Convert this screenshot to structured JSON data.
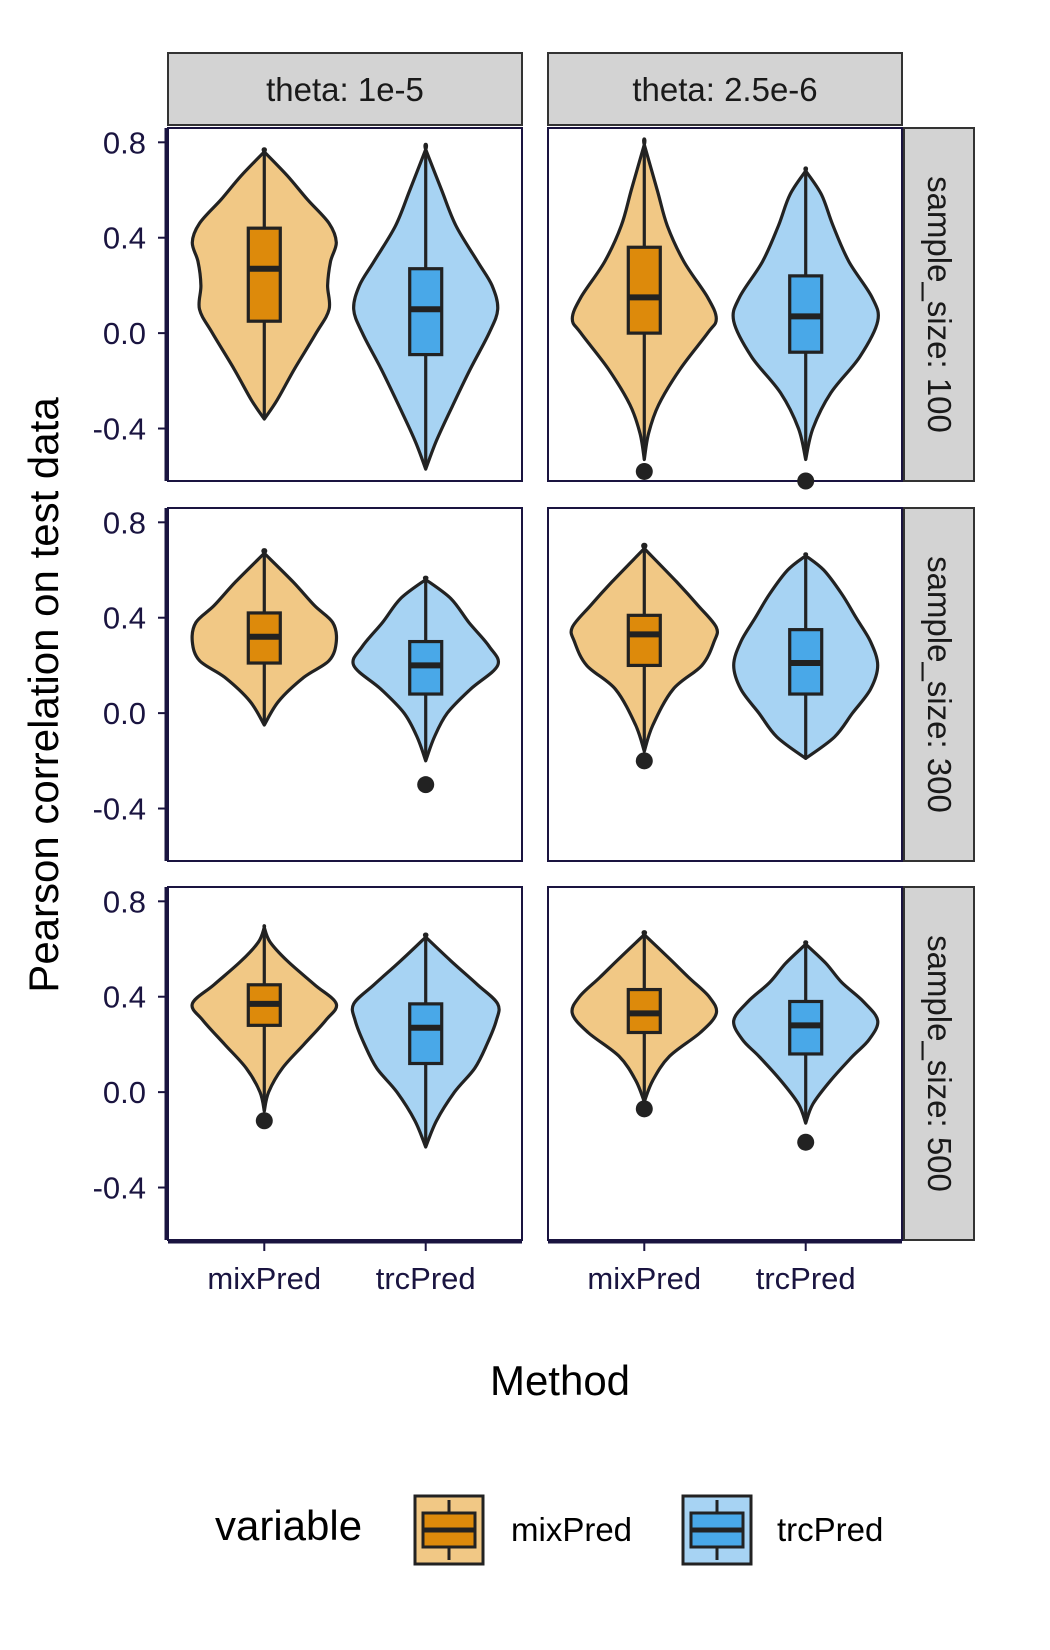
{
  "chart_data": {
    "type": "violin",
    "xlabel": "Method",
    "ylabel": "Pearson correlation on test data",
    "ylim": [
      -0.62,
      0.86
    ],
    "yticks": [
      -0.4,
      0.0,
      0.4,
      0.8
    ],
    "ytick_labels": [
      "-0.4",
      "0.0",
      "0.4",
      "0.8"
    ],
    "categories": [
      "mixPred",
      "trcPred"
    ],
    "facet_cols": [
      "theta: 1e-5",
      "theta: 2.5e-6"
    ],
    "facet_rows": [
      "sample_size: 100",
      "sample_size: 300",
      "sample_size: 500"
    ],
    "legend": {
      "title": "variable",
      "position": "bottom",
      "items": [
        "mixPred",
        "trcPred"
      ]
    },
    "colors": {
      "mixPred_fill": "#dd8a0b",
      "mixPred_violin": "#f1c885",
      "trcPred_fill": "#49a8e8",
      "trcPred_violin": "#a7d3f3",
      "outline": "#222222",
      "strip_bg": "#d3d3d3",
      "panel_border": "#1a1440"
    },
    "panels": [
      {
        "row": 0,
        "col": 0,
        "violins": [
          {
            "method": "mixPred",
            "min": -0.36,
            "max": 0.76,
            "q1": 0.05,
            "median": 0.27,
            "q3": 0.44,
            "outliers": [],
            "shape": [
              [
                -0.36,
                0.0
              ],
              [
                -0.28,
                0.18
              ],
              [
                -0.15,
                0.42
              ],
              [
                0.0,
                0.72
              ],
              [
                0.1,
                0.9
              ],
              [
                0.2,
                0.88
              ],
              [
                0.3,
                0.92
              ],
              [
                0.38,
                1.0
              ],
              [
                0.46,
                0.9
              ],
              [
                0.56,
                0.6
              ],
              [
                0.66,
                0.32
              ],
              [
                0.76,
                0.0
              ]
            ]
          },
          {
            "method": "trcPred",
            "min": -0.57,
            "max": 0.77,
            "q1": -0.09,
            "median": 0.1,
            "q3": 0.27,
            "outliers": [],
            "shape": [
              [
                -0.57,
                0.0
              ],
              [
                -0.45,
                0.15
              ],
              [
                -0.3,
                0.38
              ],
              [
                -0.15,
                0.62
              ],
              [
                0.0,
                0.88
              ],
              [
                0.1,
                1.0
              ],
              [
                0.2,
                0.92
              ],
              [
                0.3,
                0.72
              ],
              [
                0.45,
                0.42
              ],
              [
                0.6,
                0.22
              ],
              [
                0.77,
                0.0
              ]
            ]
          }
        ]
      },
      {
        "row": 0,
        "col": 1,
        "violins": [
          {
            "method": "mixPred",
            "min": -0.53,
            "max": 0.79,
            "q1": 0.0,
            "median": 0.15,
            "q3": 0.36,
            "outliers": [
              -0.58
            ],
            "shape": [
              [
                -0.53,
                0.0
              ],
              [
                -0.42,
                0.06
              ],
              [
                -0.3,
                0.2
              ],
              [
                -0.15,
                0.5
              ],
              [
                0.0,
                0.88
              ],
              [
                0.06,
                1.0
              ],
              [
                0.15,
                0.88
              ],
              [
                0.3,
                0.55
              ],
              [
                0.45,
                0.32
              ],
              [
                0.6,
                0.18
              ],
              [
                0.79,
                0.0
              ]
            ]
          },
          {
            "method": "trcPred",
            "min": -0.53,
            "max": 0.68,
            "q1": -0.08,
            "median": 0.07,
            "q3": 0.24,
            "outliers": [
              -0.62
            ],
            "shape": [
              [
                -0.53,
                0.0
              ],
              [
                -0.4,
                0.1
              ],
              [
                -0.25,
                0.35
              ],
              [
                -0.1,
                0.75
              ],
              [
                0.05,
                1.0
              ],
              [
                0.15,
                0.92
              ],
              [
                0.3,
                0.6
              ],
              [
                0.45,
                0.38
              ],
              [
                0.58,
                0.22
              ],
              [
                0.68,
                0.0
              ]
            ]
          }
        ]
      },
      {
        "row": 1,
        "col": 0,
        "violins": [
          {
            "method": "mixPred",
            "min": -0.05,
            "max": 0.67,
            "q1": 0.21,
            "median": 0.32,
            "q3": 0.42,
            "outliers": [],
            "shape": [
              [
                -0.05,
                0.0
              ],
              [
                0.05,
                0.2
              ],
              [
                0.15,
                0.55
              ],
              [
                0.22,
                0.9
              ],
              [
                0.3,
                1.0
              ],
              [
                0.38,
                0.95
              ],
              [
                0.45,
                0.7
              ],
              [
                0.55,
                0.4
              ],
              [
                0.67,
                0.0
              ]
            ]
          },
          {
            "method": "trcPred",
            "min": -0.2,
            "max": 0.56,
            "q1": 0.08,
            "median": 0.2,
            "q3": 0.3,
            "outliers": [
              -0.3
            ],
            "shape": [
              [
                -0.2,
                0.0
              ],
              [
                -0.1,
                0.12
              ],
              [
                0.0,
                0.3
              ],
              [
                0.1,
                0.62
              ],
              [
                0.2,
                1.0
              ],
              [
                0.28,
                0.88
              ],
              [
                0.38,
                0.6
              ],
              [
                0.48,
                0.35
              ],
              [
                0.56,
                0.0
              ]
            ]
          }
        ]
      },
      {
        "row": 1,
        "col": 1,
        "violins": [
          {
            "method": "mixPred",
            "min": -0.16,
            "max": 0.69,
            "q1": 0.2,
            "median": 0.33,
            "q3": 0.41,
            "outliers": [
              -0.2
            ],
            "shape": [
              [
                -0.16,
                0.0
              ],
              [
                -0.05,
                0.12
              ],
              [
                0.1,
                0.4
              ],
              [
                0.2,
                0.8
              ],
              [
                0.3,
                0.97
              ],
              [
                0.36,
                1.0
              ],
              [
                0.45,
                0.75
              ],
              [
                0.55,
                0.45
              ],
              [
                0.69,
                0.0
              ]
            ]
          },
          {
            "method": "trcPred",
            "min": -0.19,
            "max": 0.66,
            "q1": 0.08,
            "median": 0.21,
            "q3": 0.35,
            "outliers": [],
            "shape": [
              [
                -0.19,
                0.0
              ],
              [
                -0.1,
                0.4
              ],
              [
                0.0,
                0.65
              ],
              [
                0.1,
                0.9
              ],
              [
                0.2,
                1.0
              ],
              [
                0.3,
                0.9
              ],
              [
                0.4,
                0.7
              ],
              [
                0.5,
                0.5
              ],
              [
                0.6,
                0.25
              ],
              [
                0.66,
                0.0
              ]
            ]
          }
        ]
      },
      {
        "row": 2,
        "col": 0,
        "violins": [
          {
            "method": "mixPred",
            "min": -0.08,
            "max": 0.69,
            "q1": 0.28,
            "median": 0.37,
            "q3": 0.45,
            "outliers": [
              -0.12
            ],
            "shape": [
              [
                -0.08,
                0.0
              ],
              [
                0.0,
                0.06
              ],
              [
                0.1,
                0.25
              ],
              [
                0.2,
                0.55
              ],
              [
                0.3,
                0.85
              ],
              [
                0.37,
                1.0
              ],
              [
                0.45,
                0.7
              ],
              [
                0.55,
                0.32
              ],
              [
                0.63,
                0.08
              ],
              [
                0.69,
                0.0
              ]
            ]
          },
          {
            "method": "trcPred",
            "min": -0.23,
            "max": 0.65,
            "q1": 0.12,
            "median": 0.27,
            "q3": 0.37,
            "outliers": [],
            "shape": [
              [
                -0.23,
                0.0
              ],
              [
                -0.12,
                0.15
              ],
              [
                0.0,
                0.4
              ],
              [
                0.1,
                0.68
              ],
              [
                0.2,
                0.85
              ],
              [
                0.3,
                0.98
              ],
              [
                0.37,
                1.0
              ],
              [
                0.45,
                0.72
              ],
              [
                0.55,
                0.35
              ],
              [
                0.65,
                0.0
              ]
            ]
          }
        ]
      },
      {
        "row": 2,
        "col": 1,
        "violins": [
          {
            "method": "mixPred",
            "min": -0.04,
            "max": 0.66,
            "q1": 0.25,
            "median": 0.33,
            "q3": 0.43,
            "outliers": [
              -0.07
            ],
            "shape": [
              [
                -0.04,
                0.0
              ],
              [
                0.05,
                0.12
              ],
              [
                0.15,
                0.35
              ],
              [
                0.25,
                0.78
              ],
              [
                0.33,
                1.0
              ],
              [
                0.4,
                0.9
              ],
              [
                0.48,
                0.62
              ],
              [
                0.56,
                0.35
              ],
              [
                0.66,
                0.0
              ]
            ]
          },
          {
            "method": "trcPred",
            "min": -0.13,
            "max": 0.62,
            "q1": 0.16,
            "median": 0.28,
            "q3": 0.38,
            "outliers": [
              -0.21
            ],
            "shape": [
              [
                -0.13,
                0.0
              ],
              [
                -0.05,
                0.1
              ],
              [
                0.05,
                0.35
              ],
              [
                0.15,
                0.65
              ],
              [
                0.22,
                0.88
              ],
              [
                0.3,
                1.0
              ],
              [
                0.38,
                0.8
              ],
              [
                0.46,
                0.5
              ],
              [
                0.54,
                0.28
              ],
              [
                0.62,
                0.0
              ]
            ]
          }
        ]
      }
    ]
  }
}
